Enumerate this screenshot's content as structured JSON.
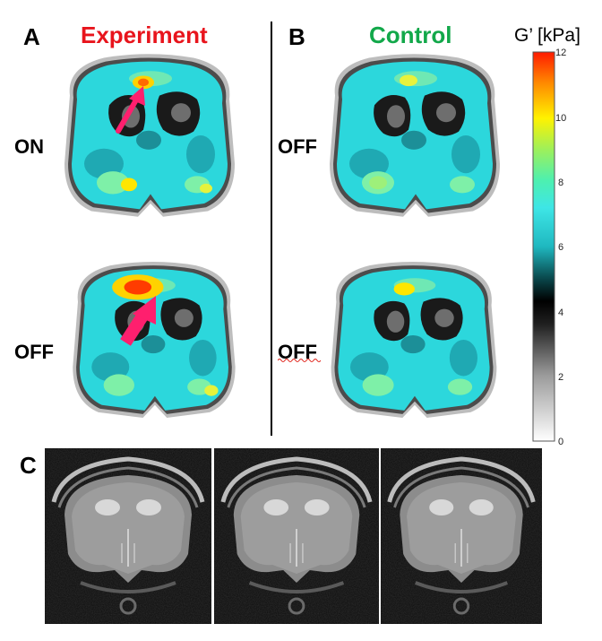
{
  "panels": {
    "a": {
      "letter": "A",
      "title": "Experiment",
      "title_color": "#e8141c",
      "top_label": "ON",
      "bottom_label": "OFF"
    },
    "b": {
      "letter": "B",
      "title": "Control",
      "title_color": "#12a84a",
      "top_label": "OFF",
      "bottom_label": "OFF"
    },
    "c": {
      "letter": "C"
    }
  },
  "colorbar": {
    "title": "G’ [kPa]",
    "min": 0,
    "max": 12,
    "ticks": [
      "0",
      "2",
      "4",
      "6",
      "8",
      "10",
      "12"
    ]
  },
  "colors": {
    "arrow": "#ff1f6e",
    "brain_cyan": "#33e0e6",
    "hotspot": "#ff3c00"
  },
  "icons": {
    "arrow": "arrow-icon"
  }
}
